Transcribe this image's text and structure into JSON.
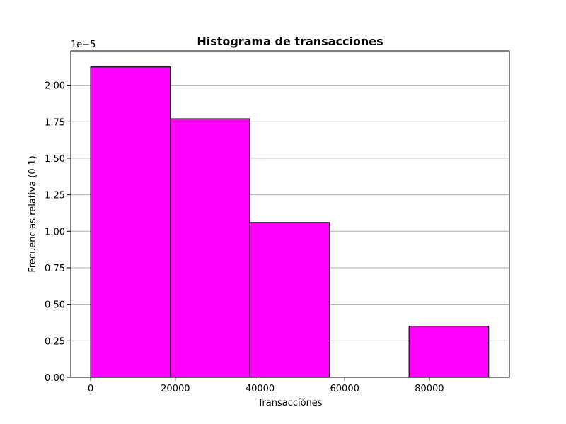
{
  "chart_data": {
    "type": "bar",
    "title": "Histograma de transacciones",
    "xlabel": "Transaccíónes",
    "ylabel": "Frecuencias relativa (0-1)",
    "y_offset_label": "1e−5",
    "xlim": [
      -4700,
      98900
    ],
    "ylim": [
      0,
      2.235
    ],
    "x_ticks": [
      0,
      20000,
      40000,
      60000,
      80000
    ],
    "x_tick_labels": [
      "0",
      "20000",
      "40000",
      "60000",
      "80000"
    ],
    "y_ticks": [
      0.0,
      0.25,
      0.5,
      0.75,
      1.0,
      1.25,
      1.5,
      1.75,
      2.0
    ],
    "y_tick_labels": [
      "0.00",
      "0.25",
      "0.50",
      "0.75",
      "1.00",
      "1.25",
      "1.50",
      "1.75",
      "2.00"
    ],
    "grid": "y",
    "bin_edges": [
      0,
      18800,
      37600,
      56400,
      75200,
      94000
    ],
    "values": [
      2.125,
      1.77,
      1.06,
      0.0,
      0.35
    ],
    "colors": {
      "bar_fill": "#ff00ff",
      "bar_edge": "#000000",
      "grid": "#b0b0b0",
      "axes": "#000000"
    }
  }
}
